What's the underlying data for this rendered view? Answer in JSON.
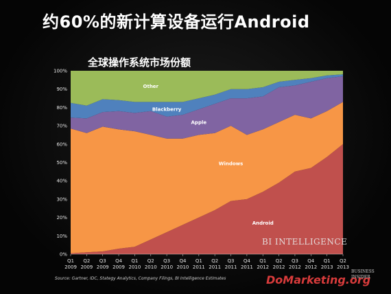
{
  "headline": "约60%的新计算设备运行Android",
  "source": "Source: Gartner, IDC, Stategy Analytics, Company Filings, BI Intelligence Estimates",
  "watermark": "BI INTELLIGENCE",
  "logo": {
    "site": "DoMarketing.org",
    "brand_line1": "BUSINESS",
    "brand_line2": "INSIDER"
  },
  "chart_data": {
    "type": "area",
    "stacked": true,
    "title": "全球操作系统市场份额",
    "ylim": [
      0,
      100
    ],
    "yticks": [
      "0%",
      "10%",
      "20%",
      "30%",
      "40%",
      "50%",
      "60%",
      "70%",
      "80%",
      "90%",
      "100%"
    ],
    "x": [
      [
        "Q1",
        "2009"
      ],
      [
        "Q2",
        "2009"
      ],
      [
        "Q3",
        "2009"
      ],
      [
        "Q4",
        "2009"
      ],
      [
        "Q1",
        "2010"
      ],
      [
        "Q2",
        "2010"
      ],
      [
        "Q3",
        "2010"
      ],
      [
        "Q4",
        "2010"
      ],
      [
        "Q1",
        "2011"
      ],
      [
        "Q2",
        "2011"
      ],
      [
        "Q3",
        "2011"
      ],
      [
        "Q4",
        "2011"
      ],
      [
        "Q1",
        "2012"
      ],
      [
        "Q2",
        "2012"
      ],
      [
        "Q3",
        "2012"
      ],
      [
        "Q4",
        "2012"
      ],
      [
        "Q1",
        "2013"
      ],
      [
        "Q2",
        "2013"
      ]
    ],
    "series": [
      {
        "name": "Android",
        "color": "#c0504d",
        "values": [
          0.5,
          1,
          1.5,
          3,
          4,
          8,
          12,
          16,
          20,
          24,
          29,
          30,
          34,
          39,
          45,
          47,
          53,
          60
        ]
      },
      {
        "name": "Windows",
        "color": "#f79646",
        "values": [
          68,
          65,
          68,
          65,
          63,
          57,
          51,
          47,
          45,
          42,
          41,
          35,
          34,
          33,
          31,
          27,
          25,
          23
        ]
      },
      {
        "name": "Apple",
        "color": "#8064a2",
        "values": [
          6,
          8,
          8,
          10,
          10,
          13,
          12,
          13,
          14,
          16,
          15,
          20,
          18,
          19,
          16,
          20,
          18,
          14
        ]
      },
      {
        "name": "Blackberry",
        "color": "#4f81bd",
        "values": [
          8,
          7,
          7,
          6,
          6,
          5,
          8,
          7,
          6,
          5,
          5,
          5,
          5,
          3,
          3,
          2,
          1.5,
          1
        ]
      },
      {
        "name": "Other",
        "color": "#9bbb59",
        "values": [
          17.5,
          19,
          15.5,
          16,
          17,
          17,
          17,
          17,
          15,
          13,
          10,
          10,
          9,
          6,
          5,
          4,
          2.5,
          2
        ]
      }
    ]
  }
}
